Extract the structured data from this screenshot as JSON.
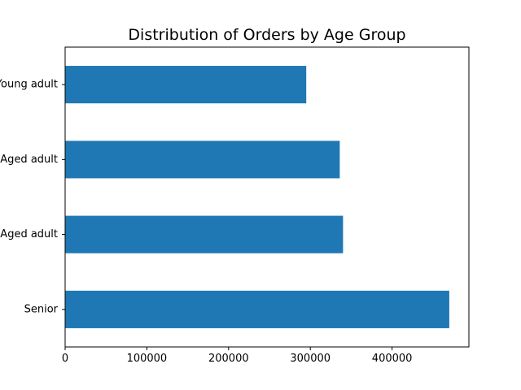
{
  "chart_data": {
    "type": "bar",
    "orientation": "horizontal",
    "title": "Distribution of Orders by Age Group",
    "xlabel": "",
    "ylabel": "",
    "categories": [
      "Young adult",
      "Middle Aged adult",
      "Aged adult",
      "Senior"
    ],
    "values": [
      295000,
      336000,
      340000,
      470000
    ],
    "xlim": [
      0,
      494000
    ],
    "xticks": [
      0,
      100000,
      200000,
      300000,
      400000
    ],
    "xtick_labels": [
      "0",
      "100000",
      "200000",
      "300000",
      "400000"
    ],
    "bar_color": "#1f77b4",
    "grid": false,
    "legend": "none"
  }
}
